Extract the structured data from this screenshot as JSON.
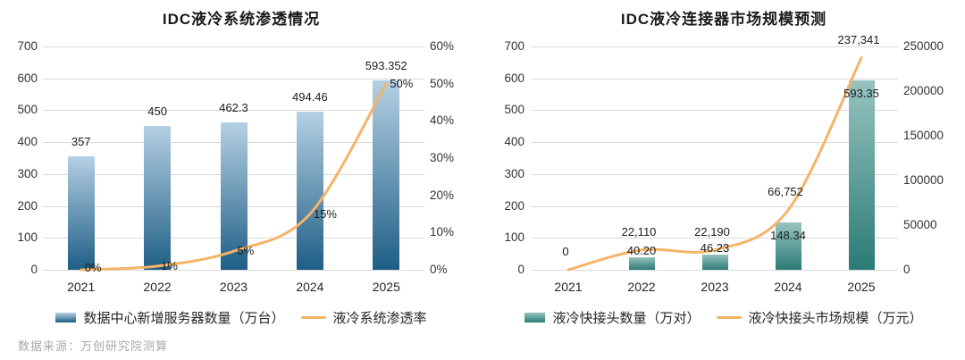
{
  "source_note": "数据来源：万创研究院测算",
  "grid_color": "#d9d9d9",
  "chart_data": [
    {
      "type": "combo-bar-line",
      "title": "IDC液冷系统渗透情况",
      "categories": [
        "2021",
        "2022",
        "2023",
        "2024",
        "2025"
      ],
      "bar_series": {
        "name": "数据中心新增服务器数量（万台）",
        "axis": "left",
        "values": [
          357,
          450,
          462.3,
          494.46,
          593.352
        ],
        "labels": [
          "357",
          "450",
          "462.3",
          "494.46",
          "593.352"
        ],
        "color_top": "#b5d0e4",
        "color_bottom": "#1e5e85"
      },
      "line_series": {
        "name": "液冷系统渗透率",
        "axis": "right",
        "values": [
          0,
          1,
          5,
          15,
          50
        ],
        "labels": [
          "0%",
          "1%",
          "5%",
          "15%",
          "50%"
        ],
        "color": "#f4b468"
      },
      "left_axis": {
        "min": 0,
        "max": 700,
        "step": 100,
        "ticks": [
          "700",
          "600",
          "500",
          "400",
          "300",
          "200",
          "100",
          "0"
        ]
      },
      "right_axis": {
        "min": 0,
        "max": 60,
        "step": 10,
        "unit": "%",
        "ticks": [
          "60%",
          "50%",
          "40%",
          "30%",
          "20%",
          "10%",
          "0%"
        ]
      },
      "grid": true,
      "legend_position": "bottom"
    },
    {
      "type": "combo-bar-line",
      "title": "IDC液冷连接器市场规模预测",
      "categories": [
        "2021",
        "2022",
        "2023",
        "2024",
        "2025"
      ],
      "bar_series": {
        "name": "液冷快接头数量（万对）",
        "axis": "left",
        "values": [
          0,
          40.2,
          46.23,
          148.34,
          593.35
        ],
        "labels": [
          "",
          "40.20",
          "46.23",
          "148.34",
          "593.35"
        ],
        "color_top": "#97c3bf",
        "color_bottom": "#2b7b77"
      },
      "line_series": {
        "name": "液冷快接头市场规模（万元）",
        "axis": "right",
        "values": [
          0,
          22110,
          22190,
          66752,
          237341
        ],
        "labels": [
          "0",
          "22,110",
          "22,190",
          "66,752",
          "237,341"
        ],
        "color": "#f4b468"
      },
      "left_axis": {
        "min": 0,
        "max": 700,
        "step": 100,
        "ticks": [
          "700",
          "600",
          "500",
          "400",
          "300",
          "200",
          "100",
          "0"
        ]
      },
      "right_axis": {
        "min": 0,
        "max": 250000,
        "step": 50000,
        "ticks": [
          "250000",
          "200000",
          "150000",
          "100000",
          "50000",
          "0"
        ]
      },
      "grid": true,
      "legend_position": "bottom"
    }
  ]
}
